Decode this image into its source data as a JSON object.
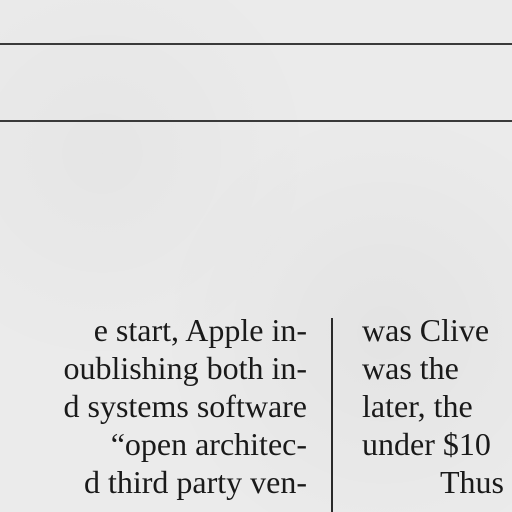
{
  "left_column": {
    "lines": [
      "e start, Apple in-",
      "oublishing both in-",
      "d systems software",
      "“open architec-",
      "d third party ven-"
    ]
  },
  "right_column": {
    "lines": [
      "was Clive",
      "was the",
      "later, the",
      "under $10",
      "Thus"
    ]
  }
}
